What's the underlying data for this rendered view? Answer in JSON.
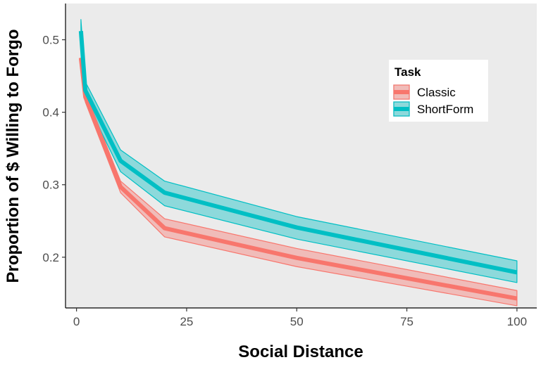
{
  "chart_data": {
    "type": "line",
    "xlabel": "Social Distance",
    "ylabel": "Proportion of $ Willing to Forgo",
    "xlim": [
      -2.5,
      104.5
    ],
    "ylim": [
      0.13,
      0.55
    ],
    "x_ticks": [
      0,
      25,
      50,
      75,
      100
    ],
    "y_ticks": [
      0.2,
      0.3,
      0.4,
      0.5
    ],
    "grid": false,
    "panel_background": "#ebebeb",
    "legend": {
      "title": "Task",
      "position": "top-right"
    },
    "series": [
      {
        "name": "Classic",
        "color": "#f8766d",
        "fill": "#f8766d",
        "points": [
          {
            "x": 1,
            "y": 0.475,
            "lower": 0.475,
            "upper": 0.475
          },
          {
            "x": 2,
            "y": 0.421,
            "lower": 0.414,
            "upper": 0.428
          },
          {
            "x": 10,
            "y": 0.297,
            "lower": 0.289,
            "upper": 0.305
          },
          {
            "x": 20,
            "y": 0.24,
            "lower": 0.228,
            "upper": 0.253
          },
          {
            "x": 50,
            "y": 0.199,
            "lower": 0.187,
            "upper": 0.212
          },
          {
            "x": 100,
            "y": 0.143,
            "lower": 0.133,
            "upper": 0.154
          }
        ]
      },
      {
        "name": "ShortForm",
        "color": "#00bfc4",
        "fill": "#00bfc4",
        "points": [
          {
            "x": 1,
            "y": 0.512,
            "lower": 0.497,
            "upper": 0.528
          },
          {
            "x": 2,
            "y": 0.43,
            "lower": 0.418,
            "upper": 0.442
          },
          {
            "x": 10,
            "y": 0.333,
            "lower": 0.318,
            "upper": 0.348
          },
          {
            "x": 20,
            "y": 0.289,
            "lower": 0.271,
            "upper": 0.305
          },
          {
            "x": 50,
            "y": 0.241,
            "lower": 0.225,
            "upper": 0.256
          },
          {
            "x": 100,
            "y": 0.179,
            "lower": 0.165,
            "upper": 0.195
          }
        ]
      }
    ]
  }
}
